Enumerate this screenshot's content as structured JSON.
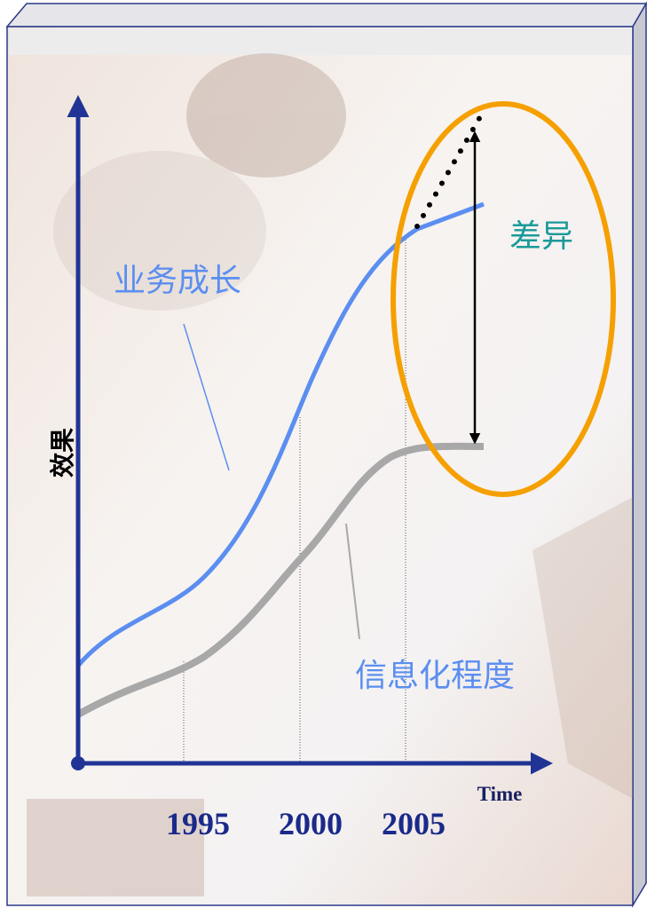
{
  "y_axis_label": "效果",
  "x_axis_label": "Time",
  "years": [
    "1995",
    "2000",
    "2005"
  ],
  "curve_labels": {
    "business": "业务成长",
    "informatization": "信息化程度"
  },
  "gap_label": "差异"
}
